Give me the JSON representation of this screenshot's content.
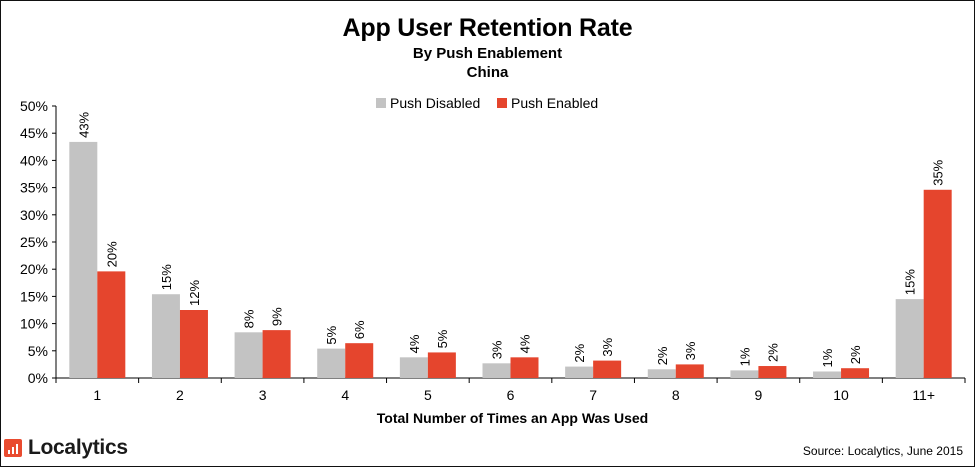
{
  "chart_data": {
    "type": "bar",
    "title": "App User Retention Rate",
    "subtitle": [
      "By Push Enablement",
      "China"
    ],
    "xlabel": "Total Number of Times an App Was Used",
    "ylabel": "",
    "ylim": [
      0,
      50
    ],
    "yticks": [
      "0%",
      "5%",
      "10%",
      "15%",
      "20%",
      "25%",
      "30%",
      "35%",
      "40%",
      "45%",
      "50%"
    ],
    "categories": [
      "1",
      "2",
      "3",
      "4",
      "5",
      "6",
      "7",
      "8",
      "9",
      "10",
      "11+"
    ],
    "series": [
      {
        "name": "Push Disabled",
        "color": "#c3c3c3",
        "values": [
          43.4,
          15.4,
          8.4,
          5.4,
          3.8,
          2.7,
          2.1,
          1.6,
          1.4,
          1.2,
          14.5
        ],
        "labels": [
          "43%",
          "15%",
          "8%",
          "5%",
          "4%",
          "3%",
          "2%",
          "2%",
          "1%",
          "1%",
          "15%"
        ]
      },
      {
        "name": "Push Enabled",
        "color": "#e5452d",
        "values": [
          19.6,
          12.5,
          8.8,
          6.4,
          4.7,
          3.8,
          3.2,
          2.5,
          2.2,
          1.8,
          34.6
        ],
        "labels": [
          "20%",
          "12%",
          "9%",
          "6%",
          "5%",
          "4%",
          "3%",
          "3%",
          "2%",
          "2%",
          "35%"
        ]
      }
    ],
    "legend_position": "top-center",
    "grid": false
  },
  "brand": {
    "name": "Localytics",
    "color": "#e94b2f"
  },
  "source": "Source: Localytics, June 2015"
}
